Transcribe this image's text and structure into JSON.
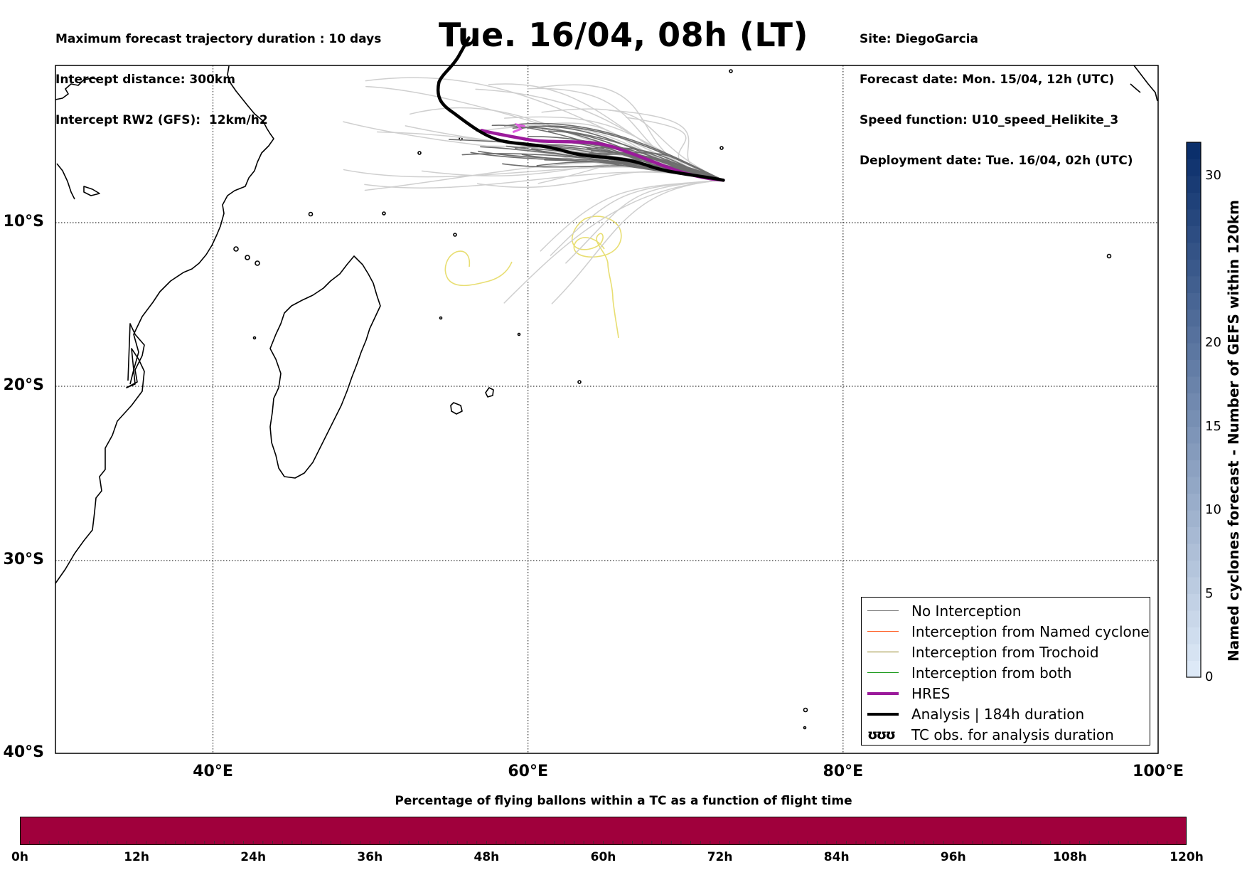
{
  "header_left": [
    "Maximum forecast trajectory duration : 10 days",
    "Intercept distance: 300km",
    "Intercept RW2 (GFS):  12km/h2"
  ],
  "title": "Tue. 16/04, 08h (LT)",
  "header_right": [
    "Site: DiegoGarcia",
    "Forecast date: Mon. 15/04, 12h (UTC)",
    "Speed function: U10_speed_Helikite_3",
    "Deployment date: Tue. 16/04, 02h (UTC)"
  ],
  "map": {
    "lon_range": [
      30,
      100
    ],
    "lat_range": [
      -40,
      0
    ],
    "lat_labels": [
      {
        "lat": -10,
        "label": "10°S"
      },
      {
        "lat": -20,
        "label": "20°S"
      },
      {
        "lat": -30,
        "label": "30°S"
      },
      {
        "lat": -40,
        "label": "40°S"
      }
    ],
    "lon_labels": [
      {
        "lon": 40,
        "label": "40°E"
      },
      {
        "lon": 60,
        "label": "60°E"
      },
      {
        "lon": 80,
        "label": "80°E"
      },
      {
        "lon": 100,
        "label": "100°E"
      }
    ],
    "launch_site": {
      "lon": 72.4,
      "lat": -7.3
    },
    "colors": {
      "no_interception": "#6e6e6e",
      "no_interception_light": "#cfcfcf",
      "named_cyclone": "#ff5a1f",
      "trochoid": "#8b7d1a",
      "both": "#1a9a1a",
      "hres": "#9b1a9b",
      "analysis": "#000000",
      "tc_obs": "#e8de72"
    }
  },
  "legend": [
    {
      "key": "no_interception",
      "label": "No Interception",
      "style": "thin",
      "color": "#777777"
    },
    {
      "key": "named_cyclone",
      "label": "Interception from Named cyclone",
      "style": "thin",
      "color": "#ff5a1f"
    },
    {
      "key": "trochoid",
      "label": "Interception from Trochoid",
      "style": "thin",
      "color": "#8b7d1a"
    },
    {
      "key": "both",
      "label": "Interception from both",
      "style": "thin",
      "color": "#1a9a1a"
    },
    {
      "key": "hres",
      "label": "HRES",
      "style": "thick",
      "color": "#9b1a9b"
    },
    {
      "key": "analysis",
      "label": "Analysis | 184h duration",
      "style": "thick",
      "color": "#000000"
    },
    {
      "key": "tc_obs",
      "label": "TC obs. for analysis duration",
      "style": "symbol",
      "symbol": "ʊʊʊ"
    }
  ],
  "colorbar_vertical": {
    "title": "Named cyclones forecast - Number of GEFS within 120km",
    "min": 0,
    "max": 32,
    "ticks": [
      0,
      5,
      10,
      15,
      20,
      30
    ],
    "color_low": "#dde9f7",
    "color_high": "#0b2f6b"
  },
  "colorbar_horizontal": {
    "title": "Percentage of flying ballons within a TC as a function of flight time",
    "color": "#a0003c",
    "ticks": [
      "0h",
      "12h",
      "24h",
      "36h",
      "48h",
      "60h",
      "72h",
      "84h",
      "96h",
      "108h",
      "120h"
    ]
  }
}
